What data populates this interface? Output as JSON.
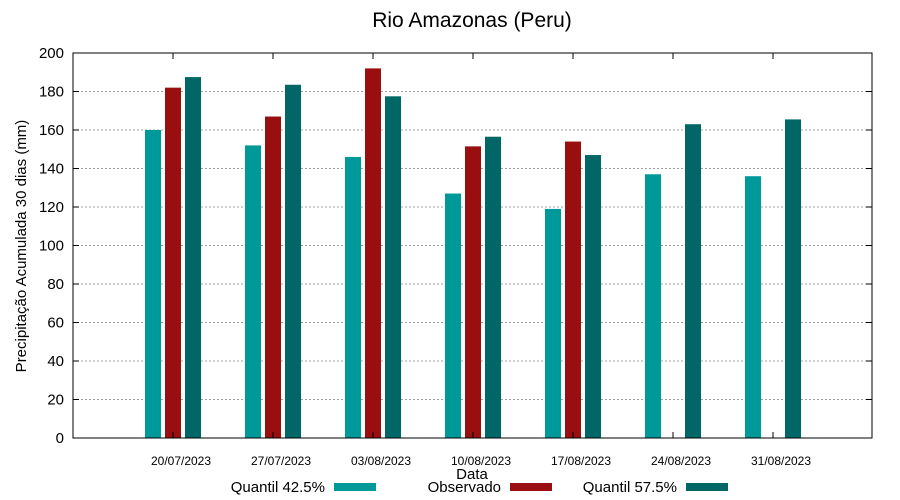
{
  "chart_data": {
    "type": "bar",
    "title": "Rio Amazonas (Peru)",
    "xlabel": "Data",
    "ylabel": "Precipitação Acumulada 30 dias (mm)",
    "ylim": [
      0,
      200
    ],
    "yticks": [
      0,
      20,
      40,
      60,
      80,
      100,
      120,
      140,
      160,
      180,
      200
    ],
    "grid": true,
    "legend_position": "bottom",
    "categories": [
      "20/07/2023",
      "27/07/2023",
      "03/08/2023",
      "10/08/2023",
      "17/08/2023",
      "24/08/2023",
      "31/08/2023"
    ],
    "series": [
      {
        "name": "Quantil 42.5%",
        "color": "#009999",
        "values": [
          160,
          152,
          146,
          127,
          119,
          137,
          136
        ]
      },
      {
        "name": "Observado",
        "color": "#990f0f",
        "values": [
          182,
          167,
          192,
          151.5,
          154,
          null,
          null
        ]
      },
      {
        "name": "Quantil 57.5%",
        "color": "#006666",
        "values": [
          187.5,
          183.5,
          177.5,
          156.5,
          147,
          163,
          165.5
        ]
      }
    ]
  }
}
